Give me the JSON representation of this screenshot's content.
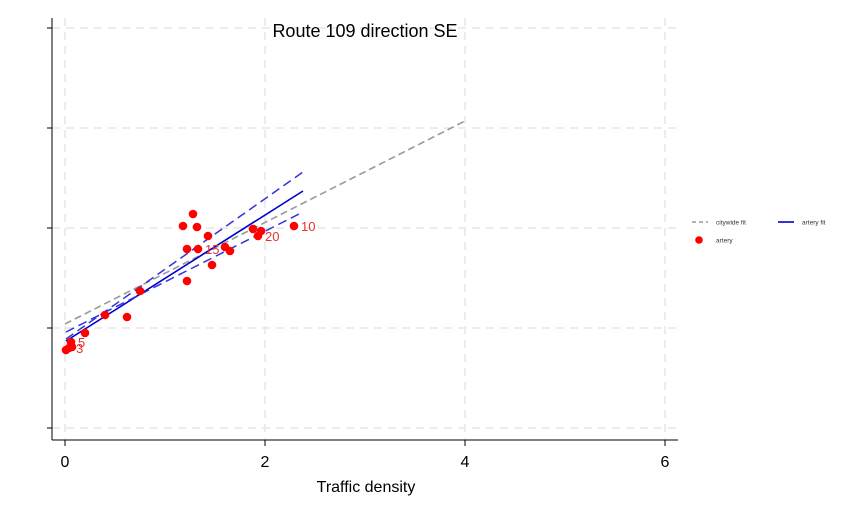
{
  "chart_data": {
    "type": "scatter",
    "title": "Route 109 direction SE",
    "xlabel": "Traffic density",
    "ylabel": "",
    "xlim": [
      0,
      6
    ],
    "ylim": [
      -1,
      3.05
    ],
    "x_ticks": [
      "0",
      "2",
      "4",
      "6"
    ],
    "x_tick_values": [
      0,
      2,
      4,
      6
    ],
    "y_tick_values": [
      -1,
      0,
      1,
      2,
      3
    ],
    "y_tick_labels_shown": false,
    "grid": true,
    "legend_position": "right",
    "colors": {
      "points": "#ff0000",
      "point_labels": "#e8312a",
      "artery_fit": "#0000cc",
      "artery_ci": "#3333dd",
      "citywide_fit": "#999999",
      "grid": "#e6e6e6"
    },
    "series": [
      {
        "name": "artery",
        "kind": "points",
        "points": [
          {
            "x": 0.01,
            "y": -0.22,
            "label": ""
          },
          {
            "x": 0.04,
            "y": -0.2,
            "label": "3"
          },
          {
            "x": 0.07,
            "y": -0.19,
            "label": ""
          },
          {
            "x": 0.06,
            "y": -0.14,
            "label": "5"
          },
          {
            "x": 0.2,
            "y": -0.05,
            "label": ""
          },
          {
            "x": 0.4,
            "y": 0.13,
            "label": ""
          },
          {
            "x": 0.62,
            "y": 0.11,
            "label": ""
          },
          {
            "x": 0.75,
            "y": 0.37,
            "label": ""
          },
          {
            "x": 1.18,
            "y": 1.02,
            "label": ""
          },
          {
            "x": 1.28,
            "y": 1.14,
            "label": ""
          },
          {
            "x": 1.32,
            "y": 1.01,
            "label": ""
          },
          {
            "x": 1.43,
            "y": 0.92,
            "label": ""
          },
          {
            "x": 1.22,
            "y": 0.79,
            "label": ""
          },
          {
            "x": 1.33,
            "y": 0.79,
            "label": "15"
          },
          {
            "x": 1.47,
            "y": 0.63,
            "label": ""
          },
          {
            "x": 1.22,
            "y": 0.47,
            "label": ""
          },
          {
            "x": 1.6,
            "y": 0.81,
            "label": ""
          },
          {
            "x": 1.65,
            "y": 0.77,
            "label": ""
          },
          {
            "x": 1.88,
            "y": 0.99,
            "label": ""
          },
          {
            "x": 1.96,
            "y": 0.97,
            "label": ""
          },
          {
            "x": 1.93,
            "y": 0.92,
            "label": "20"
          },
          {
            "x": 2.29,
            "y": 1.02,
            "label": "10"
          }
        ]
      },
      {
        "name": "citywide fit",
        "kind": "line",
        "style": "dashed",
        "points": [
          {
            "x": 0,
            "y": 0.04
          },
          {
            "x": 4,
            "y": 2.07
          }
        ]
      },
      {
        "name": "artery fit",
        "kind": "line",
        "style": "solid",
        "points": [
          {
            "x": 0.01,
            "y": -0.13
          },
          {
            "x": 2.38,
            "y": 1.37
          }
        ]
      },
      {
        "name": "",
        "kind": "ci-upper",
        "style": "dashed",
        "points": [
          {
            "x": 0.01,
            "y": -0.11
          },
          {
            "x": 2.38,
            "y": 1.56
          }
        ]
      },
      {
        "name": "",
        "kind": "ci-lower",
        "style": "dashed",
        "points": [
          {
            "x": 0.01,
            "y": -0.04
          },
          {
            "x": 2.38,
            "y": 1.16
          }
        ]
      }
    ],
    "legend": [
      {
        "label": "citywide fit",
        "marker": "dash",
        "color": "#999999"
      },
      {
        "label": "artery fit",
        "marker": "line",
        "color": "#0000cc"
      },
      {
        "label": "artery",
        "marker": "dot",
        "color": "#ff0000"
      }
    ]
  }
}
